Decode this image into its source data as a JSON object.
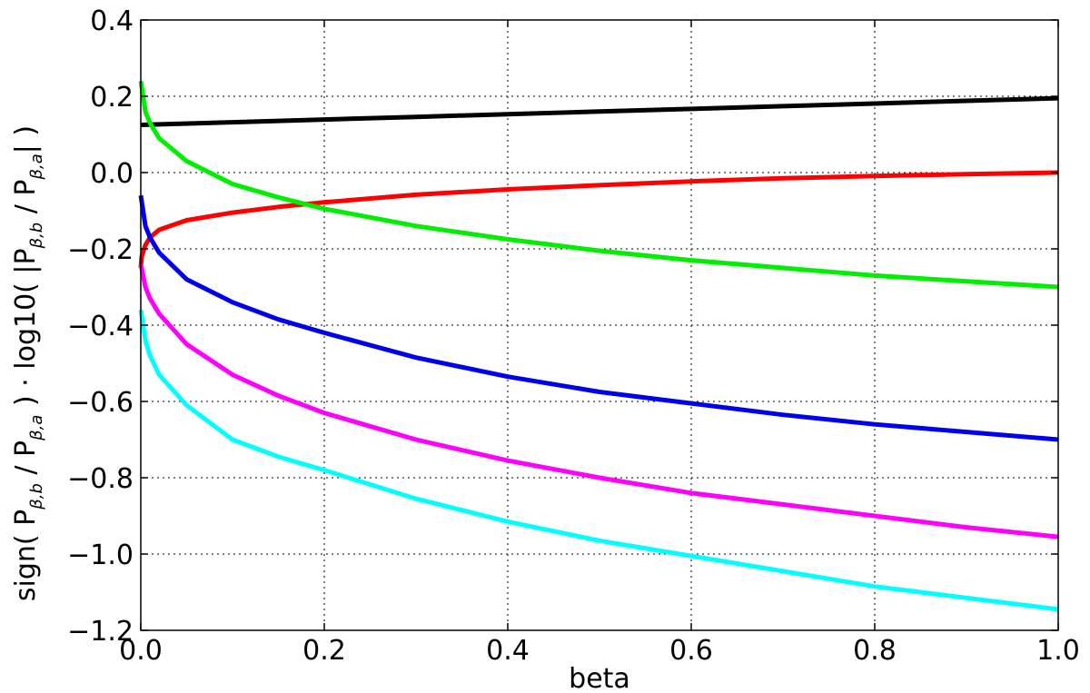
{
  "chart_data": {
    "type": "line",
    "title": "",
    "xlabel": "beta",
    "ylabel": "sign( Pβ,b / Pβ,a ) · log10( |Pβ,b / Pβ,a| )",
    "ylabel_parts": {
      "part1": "sign( P",
      "sub1": "β,b",
      "part2": " / P",
      "sub2": "β,a",
      "part3": " )  · log10( |P",
      "sub3": "β,b",
      "part4": " / P",
      "sub4": "β,a",
      "part5": "| )"
    },
    "xlim": [
      0.0,
      1.0
    ],
    "ylim": [
      -1.2,
      0.4
    ],
    "xticks": [
      0.0,
      0.2,
      0.4,
      0.6,
      0.8,
      1.0
    ],
    "xtick_labels": [
      "0.0",
      "0.2",
      "0.4",
      "0.6",
      "0.8",
      "1.0"
    ],
    "yticks": [
      -1.2,
      -1.0,
      -0.8,
      -0.6,
      -0.4,
      -0.2,
      0.0,
      0.2,
      0.4
    ],
    "ytick_labels": [
      "−1.2",
      "−1.0",
      "−0.8",
      "−0.6",
      "−0.4",
      "−0.2",
      "0.0",
      "0.2",
      "0.4"
    ],
    "grid": true,
    "legend": "none",
    "series": [
      {
        "color": "#000000",
        "x": [
          0.0,
          0.1,
          0.2,
          0.3,
          0.4,
          0.5,
          0.6,
          0.7,
          0.8,
          0.9,
          1.0
        ],
        "y": [
          0.125,
          0.132,
          0.139,
          0.146,
          0.153,
          0.16,
          0.167,
          0.174,
          0.181,
          0.188,
          0.195
        ]
      },
      {
        "color": "#ff0000",
        "x": [
          0.0,
          0.001,
          0.005,
          0.01,
          0.02,
          0.05,
          0.1,
          0.15,
          0.2,
          0.3,
          0.4,
          0.5,
          0.6,
          0.7,
          0.8,
          0.9,
          1.0
        ],
        "y": [
          -0.25,
          -0.22,
          -0.19,
          -0.17,
          -0.15,
          -0.125,
          -0.105,
          -0.09,
          -0.078,
          -0.058,
          -0.044,
          -0.033,
          -0.023,
          -0.015,
          -0.009,
          -0.004,
          0.0
        ]
      },
      {
        "color": "#00ee00",
        "x": [
          0.0,
          0.005,
          0.01,
          0.02,
          0.05,
          0.1,
          0.15,
          0.2,
          0.3,
          0.4,
          0.5,
          0.6,
          0.7,
          0.8,
          0.9,
          1.0
        ],
        "y": [
          0.24,
          0.16,
          0.13,
          0.09,
          0.03,
          -0.03,
          -0.065,
          -0.095,
          -0.14,
          -0.175,
          -0.205,
          -0.23,
          -0.25,
          -0.27,
          -0.285,
          -0.3
        ]
      },
      {
        "color": "#0000ee",
        "x": [
          0.0,
          0.005,
          0.01,
          0.02,
          0.05,
          0.1,
          0.15,
          0.2,
          0.3,
          0.4,
          0.5,
          0.6,
          0.7,
          0.8,
          0.9,
          1.0
        ],
        "y": [
          -0.06,
          -0.14,
          -0.17,
          -0.21,
          -0.28,
          -0.34,
          -0.385,
          -0.42,
          -0.485,
          -0.535,
          -0.575,
          -0.605,
          -0.635,
          -0.66,
          -0.68,
          -0.7
        ]
      },
      {
        "color": "#ff00ff",
        "x": [
          0.0,
          0.005,
          0.01,
          0.02,
          0.05,
          0.1,
          0.15,
          0.2,
          0.3,
          0.4,
          0.5,
          0.6,
          0.7,
          0.8,
          0.9,
          1.0
        ],
        "y": [
          -0.24,
          -0.3,
          -0.33,
          -0.37,
          -0.45,
          -0.53,
          -0.585,
          -0.63,
          -0.7,
          -0.755,
          -0.8,
          -0.84,
          -0.87,
          -0.9,
          -0.93,
          -0.955
        ]
      },
      {
        "color": "#00ffff",
        "x": [
          0.0,
          0.005,
          0.01,
          0.02,
          0.05,
          0.1,
          0.15,
          0.2,
          0.3,
          0.4,
          0.5,
          0.6,
          0.7,
          0.8,
          0.9,
          1.0
        ],
        "y": [
          -0.36,
          -0.44,
          -0.48,
          -0.53,
          -0.61,
          -0.7,
          -0.745,
          -0.78,
          -0.855,
          -0.915,
          -0.965,
          -1.005,
          -1.045,
          -1.085,
          -1.115,
          -1.145
        ]
      }
    ]
  }
}
